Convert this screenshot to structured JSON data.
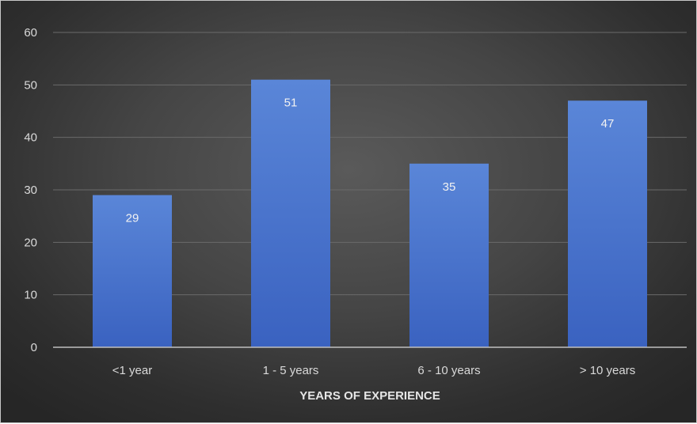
{
  "chart_data": {
    "type": "bar",
    "categories": [
      "<1 year",
      "1 - 5 years",
      "6 - 10 years",
      "> 10 years"
    ],
    "values": [
      29,
      51,
      35,
      47
    ],
    "data_labels": [
      "29",
      "51",
      "35",
      "47"
    ],
    "title": "",
    "xlabel": "YEARS OF EXPERIENCE",
    "ylabel": "",
    "ylim": [
      0,
      60
    ],
    "yticks": [
      "0",
      "10",
      "20",
      "30",
      "40",
      "50",
      "60"
    ],
    "grid": true,
    "legend": "none",
    "bar_color_top": "#5a86d8",
    "bar_color_bottom": "#3a62c0",
    "background_color": "#3c3c3c"
  }
}
